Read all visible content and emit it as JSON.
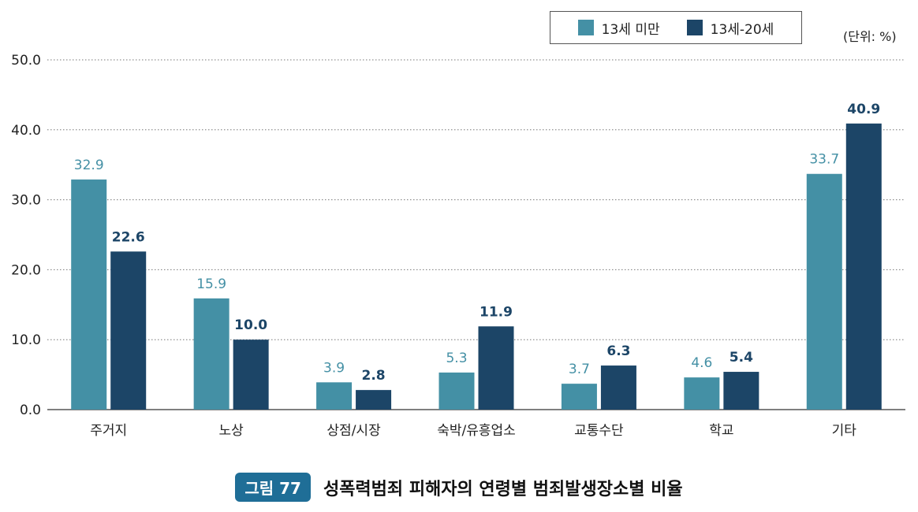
{
  "chart_data": {
    "type": "bar",
    "categories": [
      "주거지",
      "노상",
      "상점/시장",
      "숙박/유흥업소",
      "교통수단",
      "학교",
      "기타"
    ],
    "series": [
      {
        "name": "13세 미만",
        "values": [
          32.9,
          15.9,
          3.9,
          5.3,
          3.7,
          4.6,
          33.7
        ],
        "color": "#4490a5"
      },
      {
        "name": "13세-20세",
        "values": [
          22.6,
          10.0,
          2.8,
          11.9,
          6.3,
          5.4,
          40.9
        ],
        "color": "#1c4567"
      }
    ],
    "ylim": [
      0,
      50
    ],
    "yticks": [
      "0.0",
      "10.0",
      "20.0",
      "30.0",
      "40.0",
      "50.0"
    ],
    "grid": true,
    "legend_position": "top-right",
    "unit_label": "(단위: %)"
  },
  "caption": {
    "figure_label": "그림 77",
    "title": "성폭력범죄 피해자의 연령별 범죄발생장소별 비율"
  }
}
